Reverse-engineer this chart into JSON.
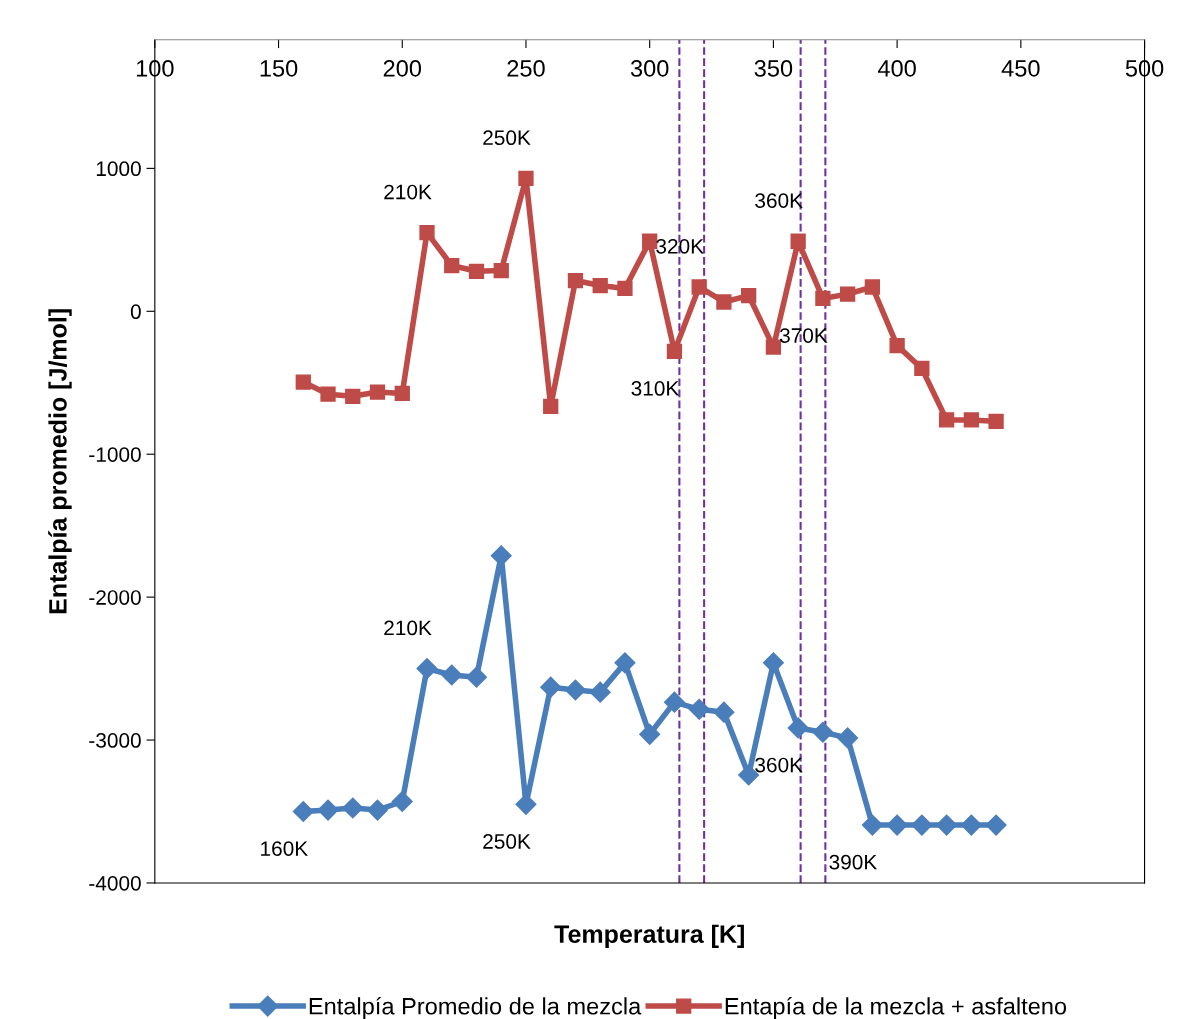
{
  "chart_data": {
    "type": "line",
    "xlabel": "Temperatura [K]",
    "ylabel": "Entalpía promedio [J/mol]",
    "x": [
      160,
      170,
      180,
      190,
      200,
      210,
      220,
      230,
      240,
      250,
      260,
      270,
      280,
      290,
      300,
      310,
      320,
      330,
      340,
      350,
      360,
      370,
      380,
      390,
      400,
      410,
      420,
      430,
      440
    ],
    "series": [
      {
        "name": "Entalpía Promedio de la mezcla",
        "color": "#4a7ebb",
        "marker": "diamond",
        "values": [
          -3500,
          -3490,
          -3475,
          -3490,
          -3430,
          -2500,
          -2545,
          -2560,
          -1710,
          -3450,
          -2630,
          -2650,
          -2665,
          -2460,
          -2960,
          -2735,
          -2785,
          -2805,
          -3245,
          -2460,
          -2915,
          -2945,
          -2985,
          -3595,
          -3595,
          -3595,
          -3595,
          -3595,
          -3595
        ]
      },
      {
        "name": "Entapía de la mezcla + asfalteno",
        "color": "#be4b48",
        "marker": "square",
        "values": [
          -495,
          -580,
          -595,
          -565,
          -575,
          550,
          320,
          280,
          285,
          930,
          -665,
          215,
          180,
          160,
          490,
          -280,
          170,
          65,
          110,
          -250,
          490,
          90,
          120,
          170,
          -240,
          -400,
          -760,
          -760,
          -770
        ]
      }
    ],
    "xlim": [
      100,
      500
    ],
    "xticks": [
      100,
      150,
      200,
      250,
      300,
      350,
      400,
      450,
      500
    ],
    "ylim": [
      -4000,
      1900
    ],
    "yticks": [
      -4000,
      -3000,
      -2000,
      -1000,
      0,
      1000
    ],
    "ref_lines": [
      {
        "axis": "x",
        "value": 312,
        "color": "#7030a0",
        "line_style": "dashed"
      },
      {
        "axis": "x",
        "value": 322,
        "color": "#7030a0",
        "line_style": "dashed"
      },
      {
        "axis": "x",
        "value": 361,
        "color": "#7030a0",
        "line_style": "dashed"
      },
      {
        "axis": "x",
        "value": 371,
        "color": "#7030a0",
        "line_style": "dashed"
      }
    ],
    "annotations": [
      {
        "text": "250K",
        "x": 250,
        "y": 930
      },
      {
        "text": "210K",
        "x": 210,
        "y": 550
      },
      {
        "text": "360K",
        "x": 360,
        "y": 490
      },
      {
        "text": "320K",
        "x": 320,
        "y": 170
      },
      {
        "text": "310K",
        "x": 310,
        "y": -280
      },
      {
        "text": "370K",
        "x": 370,
        "y": 90
      },
      {
        "text": "210K",
        "x": 210,
        "y": -2500
      },
      {
        "text": "160K",
        "x": 160,
        "y": -3500
      },
      {
        "text": "250K",
        "x": 250,
        "y": -3450
      },
      {
        "text": "360K",
        "x": 360,
        "y": -2915
      },
      {
        "text": "390K",
        "x": 390,
        "y": -3595
      }
    ],
    "grid": false,
    "legend": "bottom",
    "line_style": "solid"
  }
}
